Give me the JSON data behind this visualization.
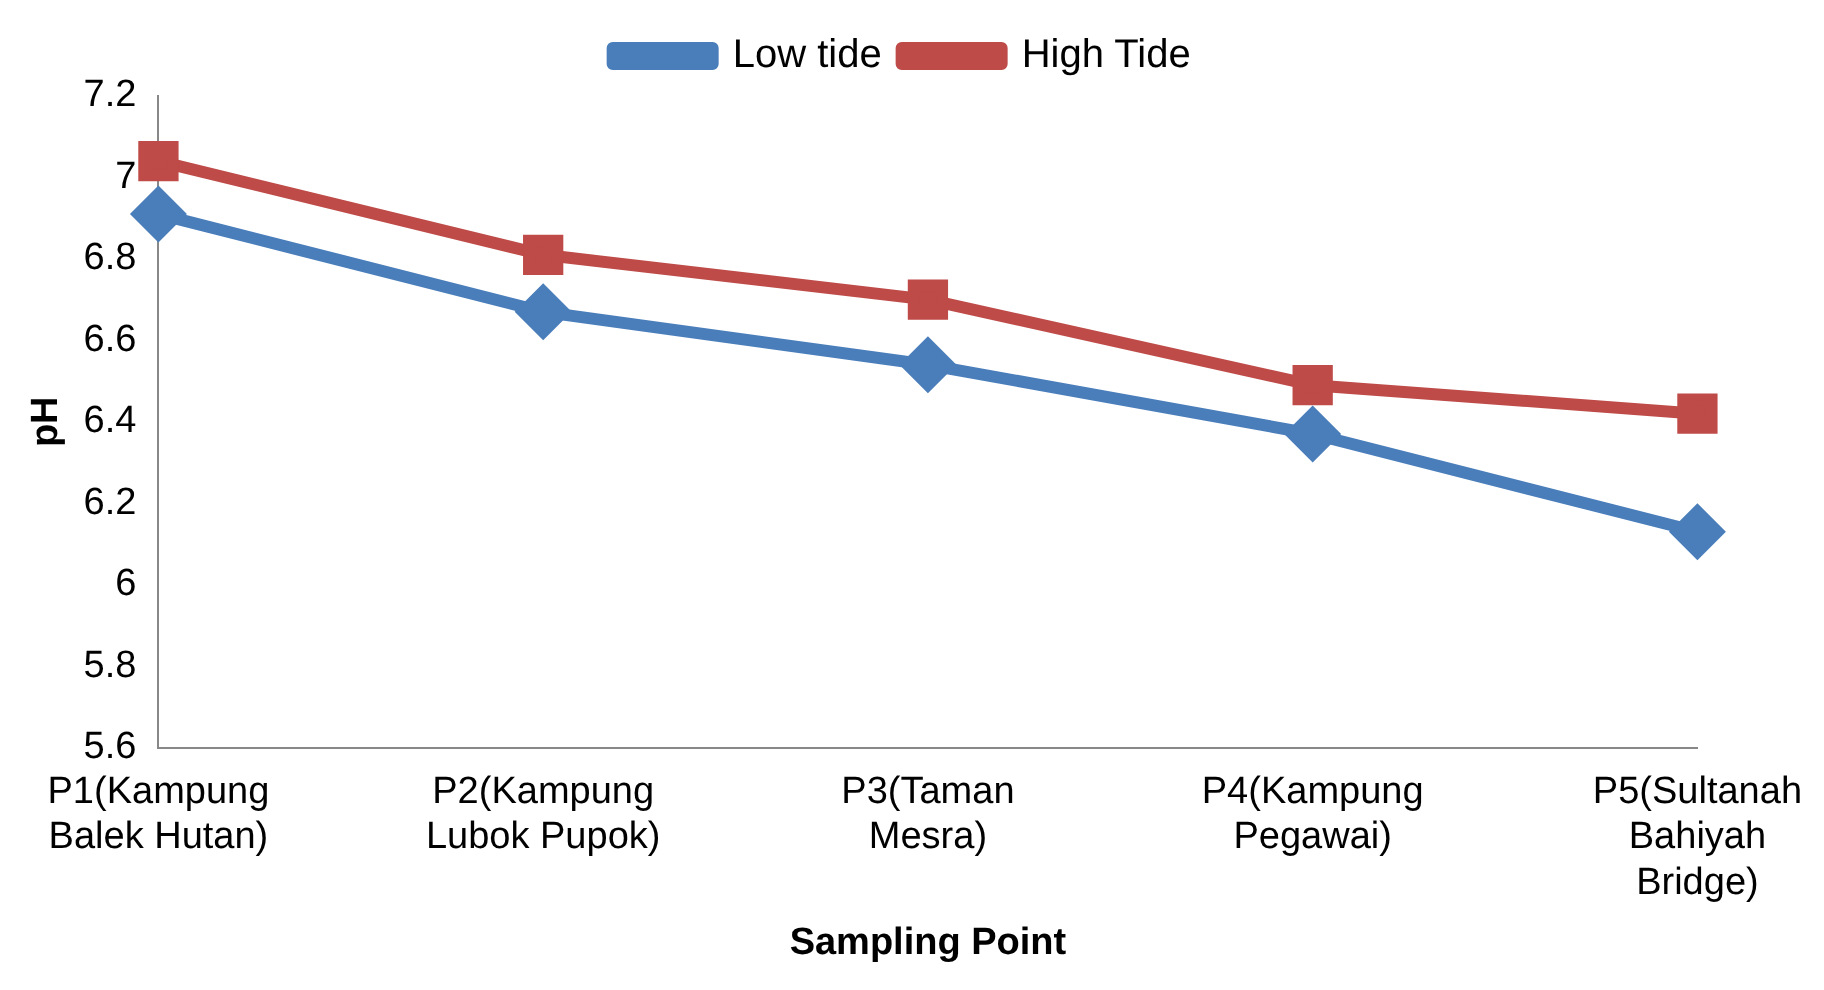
{
  "chart_data": {
    "type": "line",
    "xlabel": "Sampling Point",
    "ylabel": "pH",
    "categories": [
      "P1(Kampung Balek Hutan)",
      "P2(Kampung Lubok Pupok)",
      "P3(Taman Mesra)",
      "P4(Kampung Pegawai)",
      "P5(Sultanah Bahiyah Bridge)"
    ],
    "series": [
      {
        "name": "Low tide",
        "color": "#4a7ebb",
        "marker": "diamond",
        "values": [
          6.91,
          6.67,
          6.54,
          6.37,
          6.13
        ]
      },
      {
        "name": "High Tide",
        "color": "#be4b48",
        "marker": "square",
        "values": [
          7.04,
          6.81,
          6.7,
          6.49,
          6.42
        ]
      }
    ],
    "ylim": [
      5.6,
      7.2
    ],
    "yticks": [
      5.6,
      5.8,
      6,
      6.2,
      6.4,
      6.6,
      6.8,
      7,
      7.2
    ],
    "grid": false,
    "legend": "top"
  }
}
